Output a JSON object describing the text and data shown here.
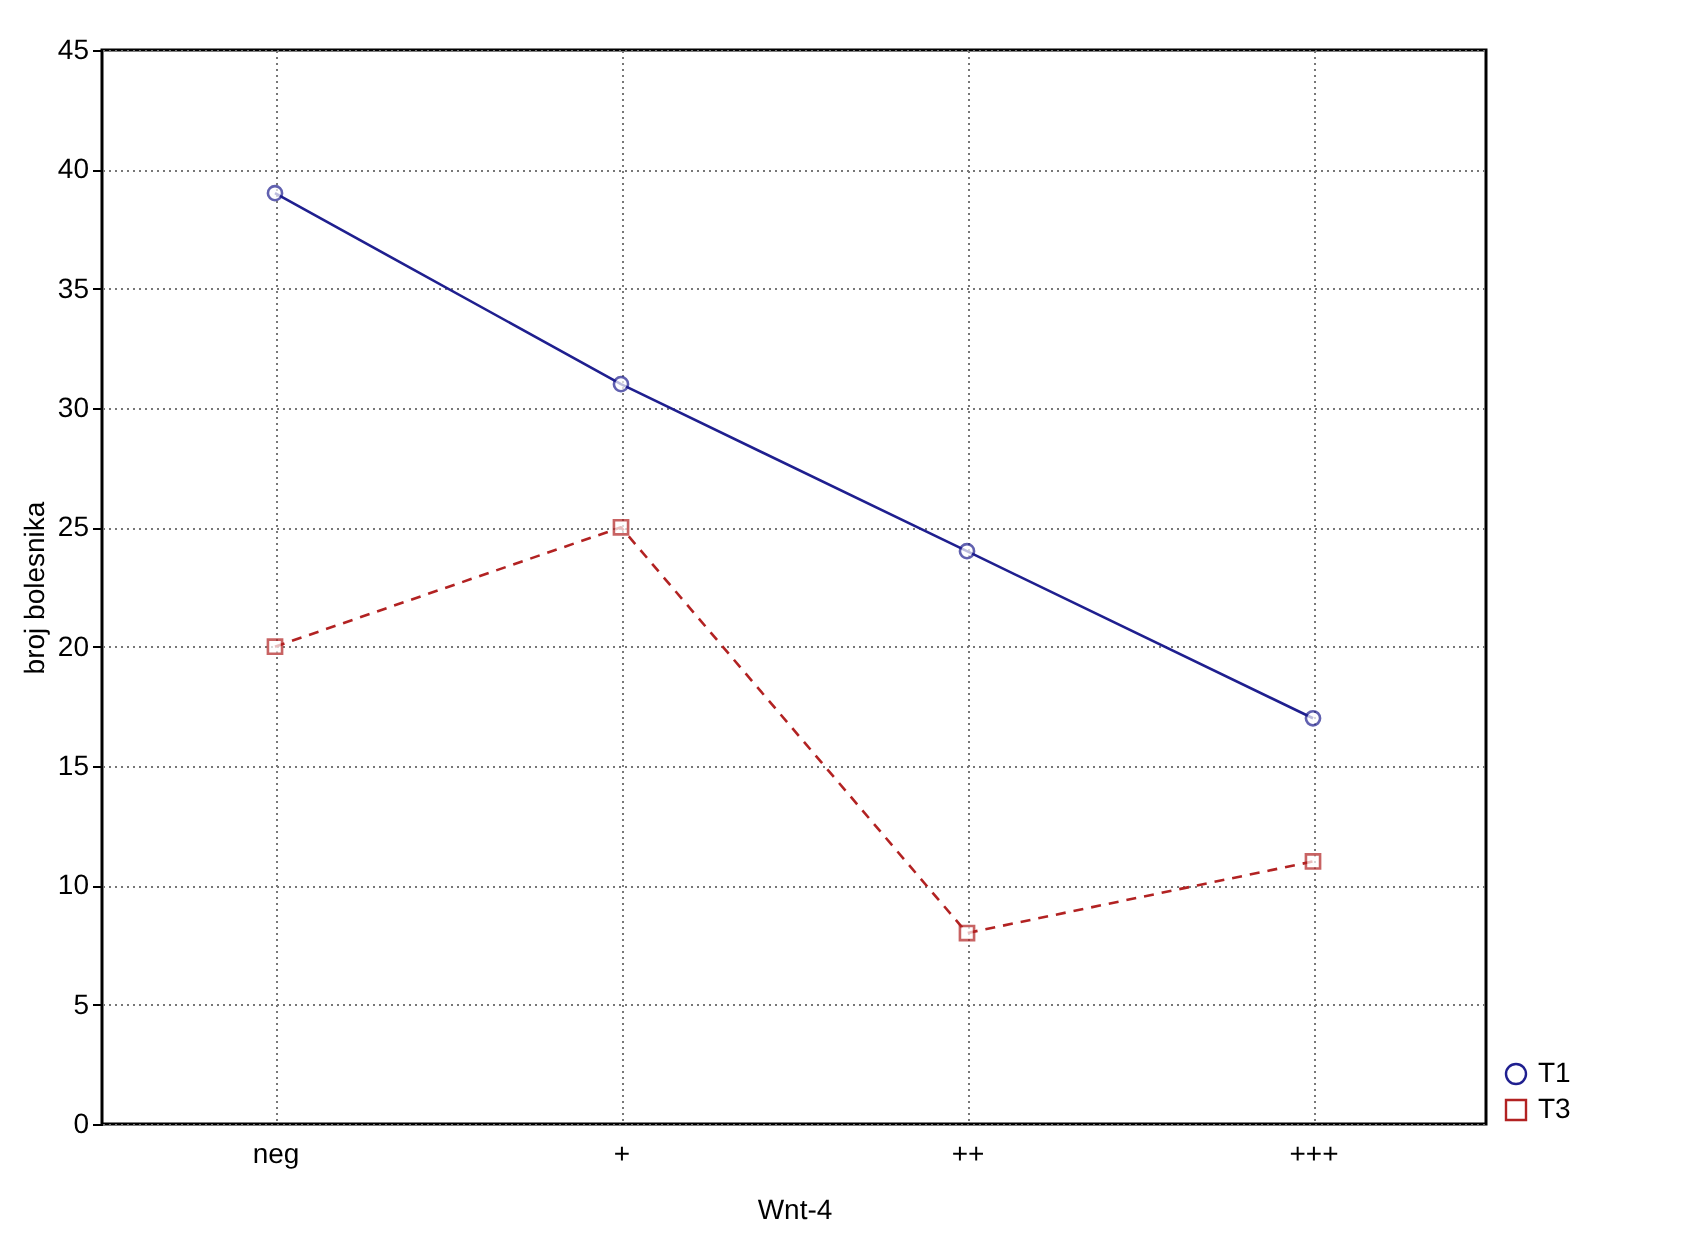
{
  "chart_data": {
    "type": "line",
    "xlabel": "Wnt-4",
    "ylabel": "broj bolesnika",
    "categories": [
      "neg",
      "+",
      "++",
      "+++"
    ],
    "series": [
      {
        "name": "T1",
        "color": "#1f1f8f",
        "values": [
          39,
          31,
          24,
          17
        ],
        "marker": "circle",
        "line_style": "solid"
      },
      {
        "name": "T3",
        "color": "#b22222",
        "values": [
          20,
          25,
          8,
          11
        ],
        "marker": "square",
        "line_style": "dashed"
      }
    ],
    "ylim": [
      0,
      45
    ],
    "yticks": [
      0,
      5,
      10,
      15,
      20,
      25,
      30,
      35,
      40,
      45
    ],
    "grid": true,
    "legend": "bottom right"
  }
}
